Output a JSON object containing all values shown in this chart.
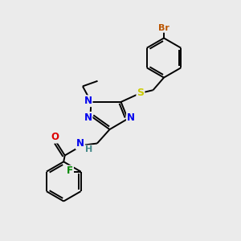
{
  "bg_color": "#ebebeb",
  "bond_color": "#000000",
  "atom_colors": {
    "N": "#0000ee",
    "O": "#dd0000",
    "S": "#cccc00",
    "F": "#008800",
    "Br": "#bb5500",
    "H": "#448888"
  },
  "figsize": [
    3.0,
    3.0
  ],
  "dpi": 100,
  "lw": 1.4
}
